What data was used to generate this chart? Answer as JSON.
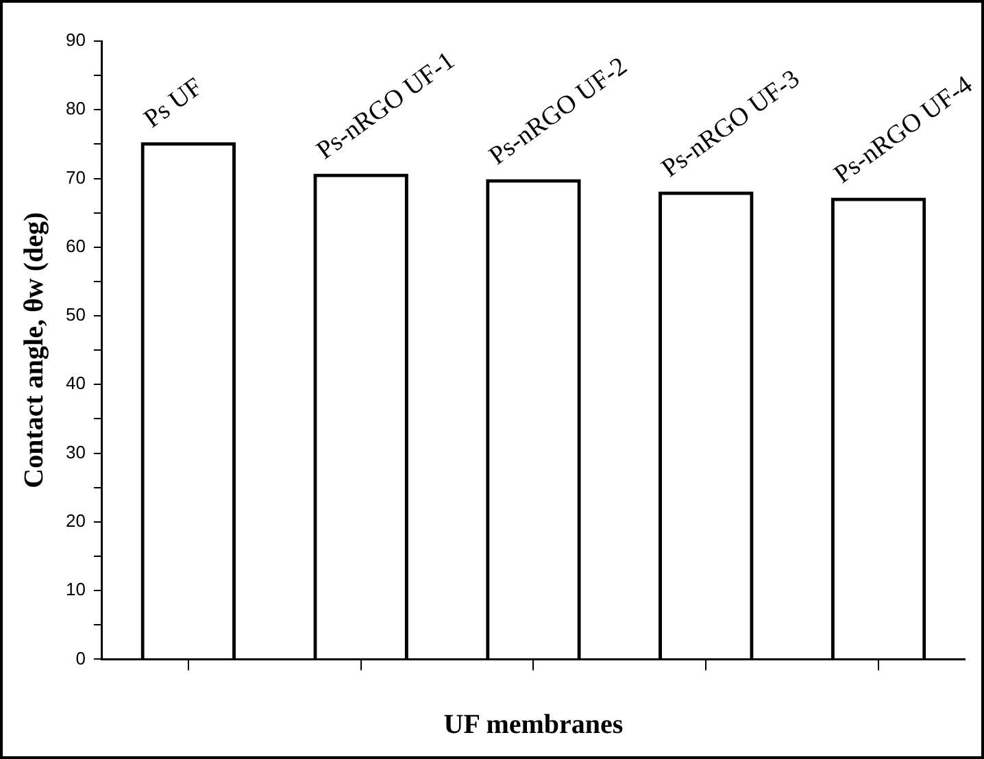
{
  "chart_data": {
    "type": "bar",
    "xlabel": "UF membranes",
    "ylabel": "Contact angle, θw (deg)",
    "categories": [
      "Ps UF",
      "Ps-nRGO UF-1",
      "Ps-nRGO UF-2",
      "Ps-nRGO UF-3",
      "Ps-nRGO UF-4"
    ],
    "values": [
      75.3,
      70.7,
      69.9,
      68.1,
      67.2
    ],
    "color": "#000000",
    "ylim": [
      0,
      90
    ],
    "yticks": [
      0,
      {
        "value": 5,
        "label": null
      },
      10,
      {
        "value": 15,
        "label": null
      },
      20,
      {
        "value": 25,
        "label": null
      },
      30,
      {
        "value": 35,
        "label": null
      },
      40,
      {
        "value": 45,
        "label": null
      },
      50,
      {
        "value": 55,
        "label": null
      },
      60,
      {
        "value": 65,
        "label": null
      },
      70,
      {
        "value": 75,
        "label": null
      },
      80,
      {
        "value": 85,
        "label": null
      },
      90
    ],
    "tick_labels": "y",
    "grid": false,
    "legend": false
  }
}
